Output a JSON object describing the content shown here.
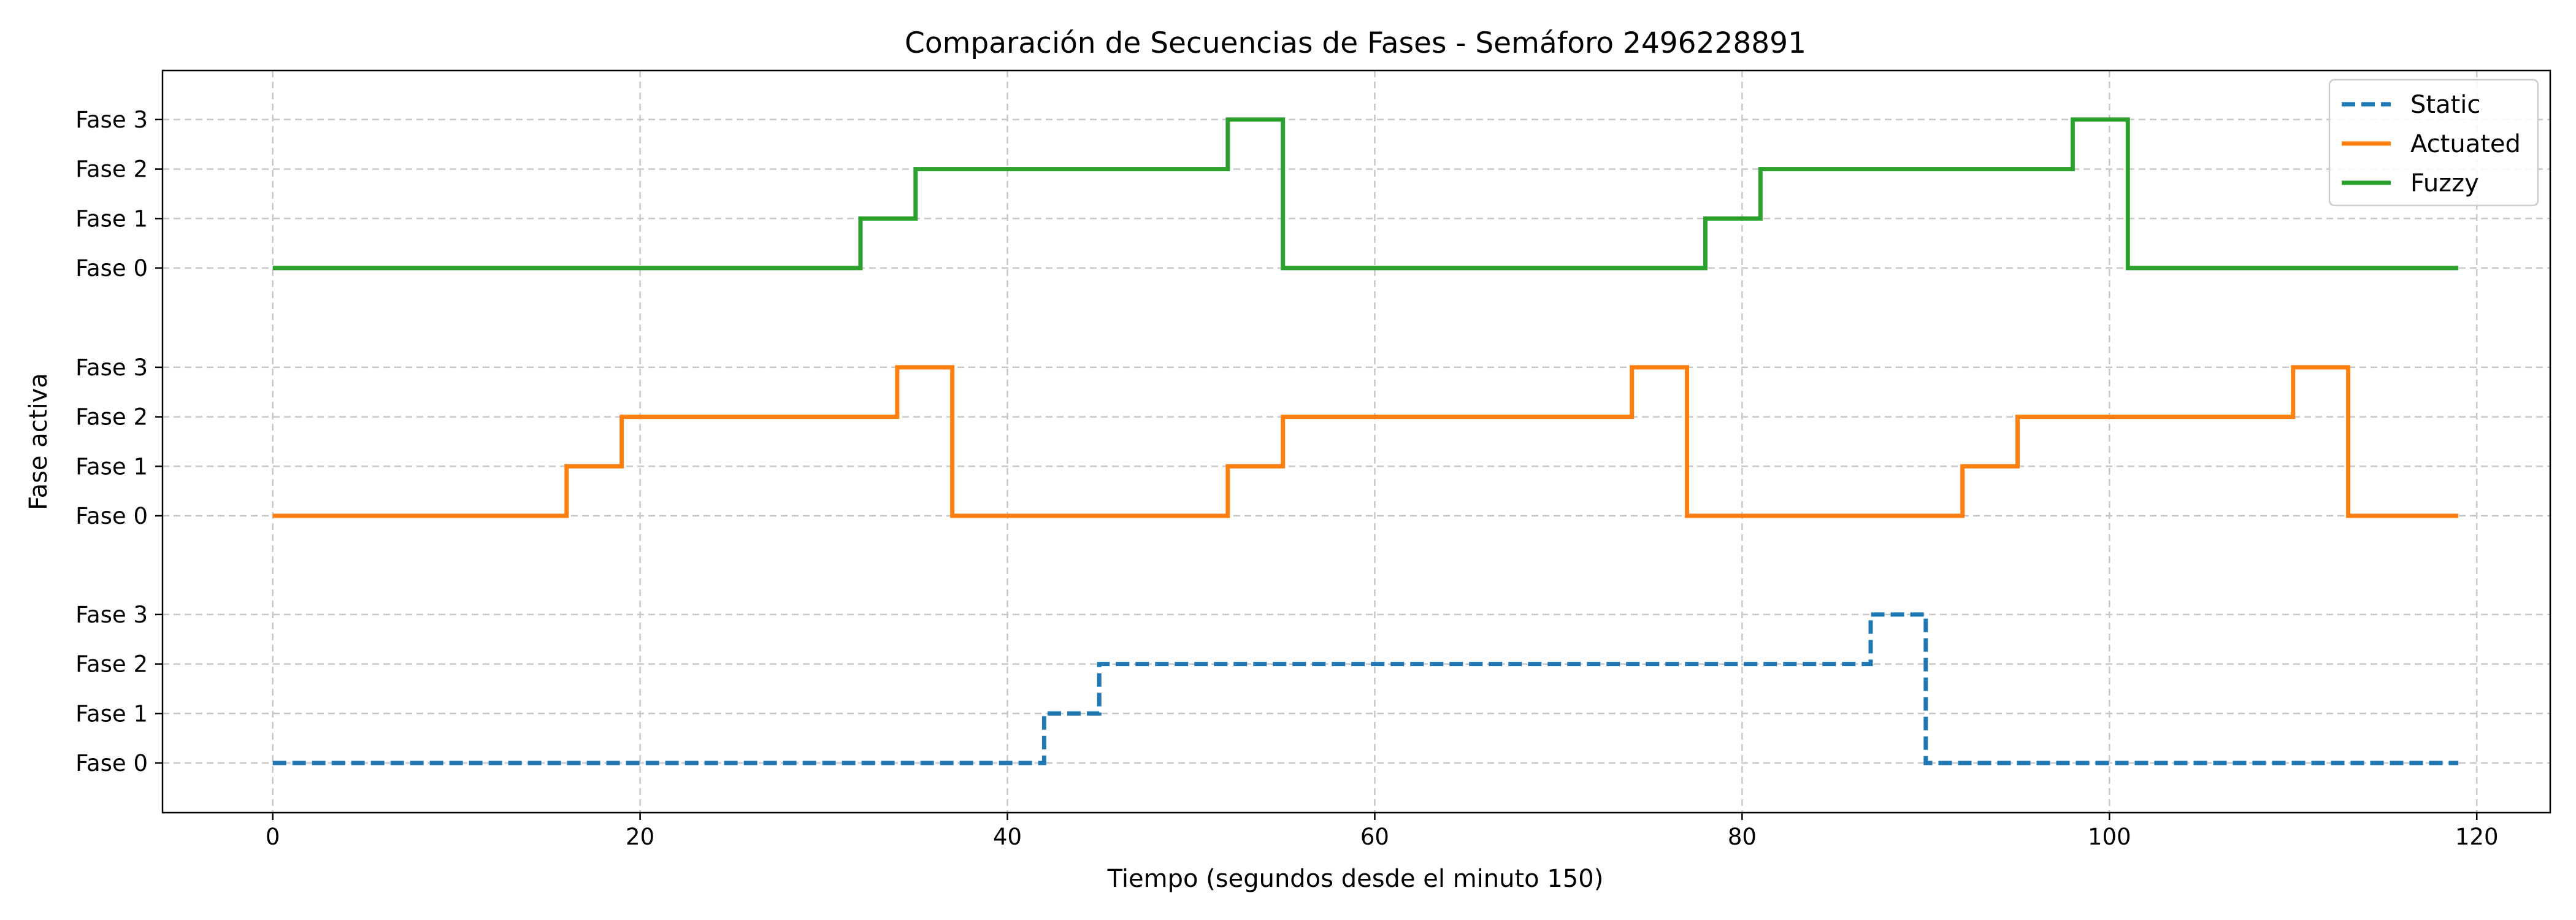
{
  "chart_data": {
    "type": "line",
    "step": "post",
    "title": "Comparación de Secuencias de Fases - Semáforo 2496228891",
    "xlabel": "Tiempo (segundos desde el minuto 150)",
    "ylabel": "Fase activa",
    "xlim": [
      -6,
      124
    ],
    "x_ticks": [
      0,
      20,
      40,
      60,
      80,
      100,
      120
    ],
    "phase_labels": [
      "Fase 0",
      "Fase 1",
      "Fase 2",
      "Fase 3"
    ],
    "grid": true,
    "legend_position": "top-right",
    "series": [
      {
        "name": "Static",
        "color": "#1f77b4",
        "dash": "dashed",
        "x_end": 119,
        "points": [
          [
            0,
            0
          ],
          [
            42,
            1
          ],
          [
            45,
            2
          ],
          [
            87,
            3
          ],
          [
            90,
            0
          ]
        ]
      },
      {
        "name": "Actuated",
        "color": "#ff7f0e",
        "dash": "solid",
        "x_end": 119,
        "points": [
          [
            0,
            0
          ],
          [
            16,
            1
          ],
          [
            19,
            2
          ],
          [
            34,
            3
          ],
          [
            37,
            0
          ],
          [
            52,
            1
          ],
          [
            55,
            2
          ],
          [
            74,
            3
          ],
          [
            77,
            0
          ],
          [
            92,
            1
          ],
          [
            95,
            2
          ],
          [
            110,
            3
          ],
          [
            113,
            0
          ]
        ]
      },
      {
        "name": "Fuzzy",
        "color": "#2ca02c",
        "dash": "solid",
        "x_end": 119,
        "points": [
          [
            0,
            0
          ],
          [
            32,
            1
          ],
          [
            35,
            2
          ],
          [
            52,
            3
          ],
          [
            55,
            0
          ],
          [
            78,
            1
          ],
          [
            81,
            2
          ],
          [
            98,
            3
          ],
          [
            101,
            0
          ]
        ]
      }
    ]
  }
}
